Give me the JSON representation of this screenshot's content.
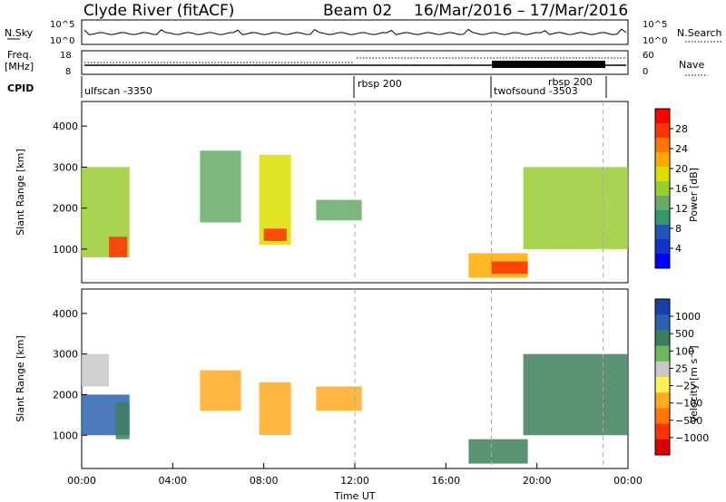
{
  "header": {
    "title": "Clyde River (fitACF)",
    "beam": "Beam 02",
    "date_range": "16/Mar/2016 – 17/Mar/2016"
  },
  "top_panels": {
    "nsky_label": "N.Sky",
    "nsky_ticks": [
      "10^5",
      "10^0"
    ],
    "nsearch_label": "N.Search",
    "nsearch_ticks": [
      "10^5",
      "10^0"
    ],
    "freq_label_1": "Freq.",
    "freq_label_2": "[MHz]",
    "freq_ticks": [
      "18",
      "8"
    ],
    "nave_label": "Nave",
    "nave_ticks": [
      "60",
      "0"
    ],
    "cpid_label": "CPID",
    "cpid_segments": [
      {
        "label": "ulfscan -3350",
        "start_hr": 0,
        "end_hr": 12.0
      },
      {
        "label": "rbsp 200",
        "start_hr": 12.0,
        "end_hr": 18.0
      },
      {
        "label": "twofsound -3503",
        "start_hr": 18.0,
        "end_hr": 22.9
      },
      {
        "label": "rbsp 200",
        "start_hr": 22.9,
        "end_hr": 24.0
      }
    ]
  },
  "colorbars": {
    "power": {
      "label": "Power [dB]",
      "ticks": [
        "28",
        "24",
        "20",
        "16",
        "12",
        "8",
        "4"
      ],
      "colors": [
        "#ff0000",
        "#ff3300",
        "#ff7700",
        "#ffaa00",
        "#dddd00",
        "#99cc33",
        "#66aa66",
        "#339966",
        "#2255bb",
        "#1133cc",
        "#0000ff"
      ]
    },
    "velocity": {
      "label": "Velocity [m s⁻¹]",
      "ticks": [
        "1000",
        "500",
        "100",
        "25",
        "−25",
        "−100",
        "−500",
        "−1000"
      ],
      "colors": [
        "#1a3fa8",
        "#2a62b0",
        "#3d7f5c",
        "#6ab85a",
        "#c8c8c8",
        "#ffee55",
        "#ffaa22",
        "#ff7700",
        "#ff3300",
        "#dd0000"
      ]
    }
  },
  "chart_data": [
    {
      "type": "heatmap",
      "title": "Power",
      "xlabel": "Time UT",
      "ylabel": "Slant Range [km]",
      "x_ticks": [
        "00:00",
        "04:00",
        "08:00",
        "12:00",
        "16:00",
        "20:00",
        "00:00"
      ],
      "y_ticks": [
        "4000",
        "3000",
        "2000",
        "1000"
      ],
      "xlim_hours": [
        0,
        24
      ],
      "ylim_km": [
        180,
        4600
      ],
      "colorbar": "power",
      "patches": [
        {
          "t0": 0.0,
          "t1": 2.1,
          "r0": 800,
          "r1": 3000,
          "value": 16
        },
        {
          "t0": 1.2,
          "t1": 2.0,
          "r0": 800,
          "r1": 1300,
          "value": 26
        },
        {
          "t0": 5.2,
          "t1": 7.0,
          "r0": 1650,
          "r1": 3400,
          "value": 12
        },
        {
          "t0": 7.8,
          "t1": 9.2,
          "r0": 1100,
          "r1": 3300,
          "value": 18
        },
        {
          "t0": 8.0,
          "t1": 9.0,
          "r0": 1200,
          "r1": 1500,
          "value": 26
        },
        {
          "t0": 10.3,
          "t1": 12.3,
          "r0": 1700,
          "r1": 2200,
          "value": 12
        },
        {
          "t0": 17.0,
          "t1": 19.6,
          "r0": 300,
          "r1": 900,
          "value": 20
        },
        {
          "t0": 18.0,
          "t1": 19.6,
          "r0": 400,
          "r1": 700,
          "value": 28
        },
        {
          "t0": 19.4,
          "t1": 24.0,
          "r0": 1000,
          "r1": 3000,
          "value": 14
        }
      ]
    },
    {
      "type": "heatmap",
      "title": "Velocity",
      "xlabel": "Time UT",
      "ylabel": "Slant Range [km]",
      "x_ticks": [
        "00:00",
        "04:00",
        "08:00",
        "12:00",
        "16:00",
        "20:00",
        "00:00"
      ],
      "y_ticks": [
        "4000",
        "3000",
        "2000",
        "1000"
      ],
      "xlim_hours": [
        0,
        24
      ],
      "ylim_km": [
        180,
        4600
      ],
      "colorbar": "velocity",
      "patches": [
        {
          "t0": 0.0,
          "t1": 2.1,
          "r0": 1000,
          "r1": 2000,
          "value": 500
        },
        {
          "t0": 0.0,
          "t1": 1.2,
          "r0": 2200,
          "r1": 3000,
          "value": 0
        },
        {
          "t0": 1.5,
          "t1": 2.1,
          "r0": 900,
          "r1": 1800,
          "value": 100
        },
        {
          "t0": 5.2,
          "t1": 7.0,
          "r0": 1600,
          "r1": 2600,
          "value": -200
        },
        {
          "t0": 7.8,
          "t1": 9.2,
          "r0": 1000,
          "r1": 2300,
          "value": -400
        },
        {
          "t0": 10.3,
          "t1": 12.3,
          "r0": 1600,
          "r1": 2200,
          "value": -300
        },
        {
          "t0": 17.0,
          "t1": 19.6,
          "r0": 300,
          "r1": 900,
          "value": 100
        },
        {
          "t0": 19.4,
          "t1": 24.0,
          "r0": 1000,
          "r1": 3000,
          "value": 400
        }
      ]
    }
  ]
}
